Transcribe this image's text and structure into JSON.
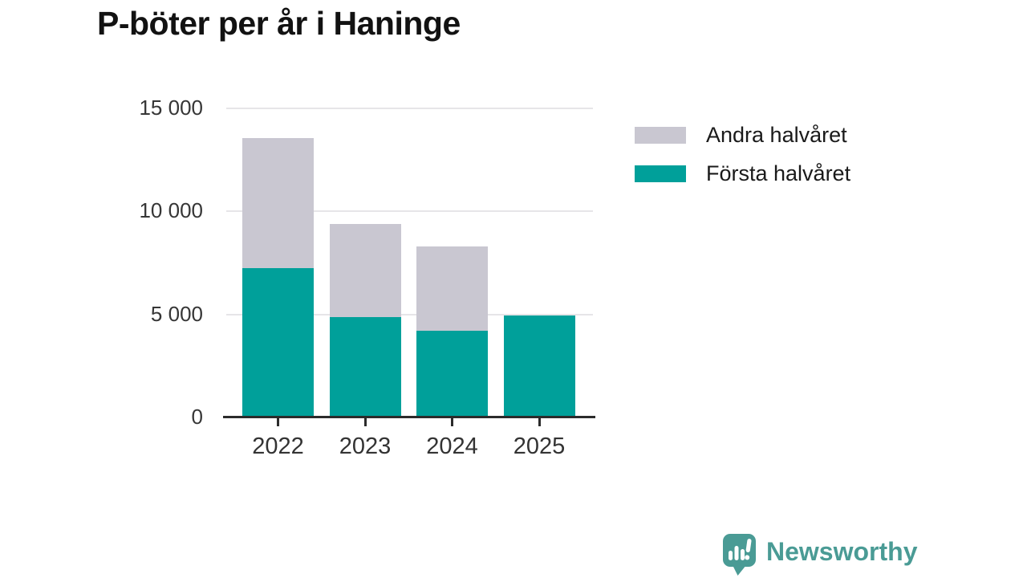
{
  "chart_data": {
    "type": "bar",
    "stacked": true,
    "title": "P-böter per år i Haninge",
    "categories": [
      "2022",
      "2023",
      "2024",
      "2025"
    ],
    "series": [
      {
        "name": "Första halvåret",
        "color": "#00a09a",
        "values": [
          7250,
          4880,
          4200,
          4950
        ]
      },
      {
        "name": "Andra halvåret",
        "color": "#c9c7d1",
        "values": [
          6300,
          4520,
          4100,
          0
        ]
      }
    ],
    "totals": [
      13550,
      9400,
      8300,
      4950
    ],
    "ylim": [
      0,
      15000
    ],
    "yticks": [
      0,
      5000,
      10000,
      15000
    ],
    "ytick_labels": [
      "0",
      "5 000",
      "10 000",
      "15 000"
    ],
    "xlabel": "",
    "ylabel": "",
    "grid": true,
    "legend_position": "right"
  },
  "legend": {
    "items": [
      {
        "label": "Andra halvåret",
        "color": "#c9c7d1"
      },
      {
        "label": "Första halvåret",
        "color": "#00a09a"
      }
    ]
  },
  "colors": {
    "first_half": "#00a09a",
    "second_half": "#c9c7d1",
    "grid": "#e6e5e8",
    "axis": "#2b2b2b",
    "brand": "#4a9b95"
  },
  "footer": {
    "brand": "Newsworthy"
  }
}
